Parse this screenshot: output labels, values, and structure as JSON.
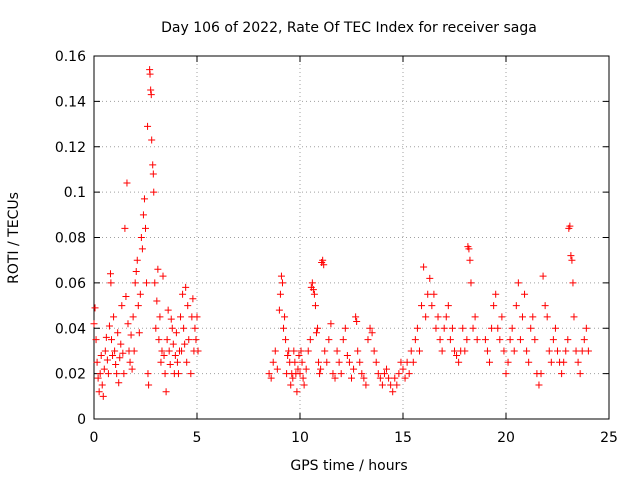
{
  "chart_data": {
    "type": "scatter",
    "title": "Day 106 of 2022, Rate Of TEC Index for receiver saga",
    "xlabel": "GPS time / hours",
    "ylabel": "ROTI / TECUs",
    "xlim": [
      0,
      25
    ],
    "ylim": [
      0,
      0.16
    ],
    "x_ticks": [
      0,
      5,
      10,
      15,
      20,
      25
    ],
    "y_ticks": [
      0,
      0.02,
      0.04,
      0.06,
      0.08,
      0.1,
      0.12,
      0.14,
      0.16
    ],
    "x_tick_labels": [
      "0",
      "5",
      "10",
      "15",
      "20",
      "25"
    ],
    "y_tick_labels": [
      "0",
      "0.02",
      "0.04",
      "0.06",
      "0.08",
      "0.1",
      "0.12",
      "0.14",
      "0.16"
    ],
    "grid": true,
    "marker": "+",
    "color": "#ff0000",
    "series": [
      {
        "name": "ROTI",
        "points": [
          [
            0.0,
            0.042
          ],
          [
            0.05,
            0.049
          ],
          [
            0.1,
            0.035
          ],
          [
            0.15,
            0.025
          ],
          [
            0.2,
            0.018
          ],
          [
            0.25,
            0.012
          ],
          [
            0.3,
            0.02
          ],
          [
            0.35,
            0.028
          ],
          [
            0.4,
            0.015
          ],
          [
            0.45,
            0.01
          ],
          [
            0.5,
            0.022
          ],
          [
            0.55,
            0.03
          ],
          [
            0.6,
            0.036
          ],
          [
            0.65,
            0.026
          ],
          [
            0.7,
            0.02
          ],
          [
            0.75,
            0.041
          ],
          [
            0.8,
            0.064
          ],
          [
            0.82,
            0.06
          ],
          [
            0.85,
            0.035
          ],
          [
            0.9,
            0.028
          ],
          [
            0.95,
            0.045
          ],
          [
            1.0,
            0.03
          ],
          [
            1.05,
            0.024
          ],
          [
            1.1,
            0.02
          ],
          [
            1.15,
            0.038
          ],
          [
            1.2,
            0.016
          ],
          [
            1.25,
            0.027
          ],
          [
            1.3,
            0.033
          ],
          [
            1.35,
            0.05
          ],
          [
            1.4,
            0.029
          ],
          [
            1.45,
            0.02
          ],
          [
            1.5,
            0.084
          ],
          [
            1.55,
            0.054
          ],
          [
            1.6,
            0.104
          ],
          [
            1.65,
            0.042
          ],
          [
            1.7,
            0.03
          ],
          [
            1.75,
            0.025
          ],
          [
            1.8,
            0.037
          ],
          [
            1.85,
            0.022
          ],
          [
            1.9,
            0.045
          ],
          [
            1.95,
            0.03
          ],
          [
            2.0,
            0.06
          ],
          [
            2.05,
            0.065
          ],
          [
            2.1,
            0.07
          ],
          [
            2.15,
            0.05
          ],
          [
            2.2,
            0.038
          ],
          [
            2.25,
            0.055
          ],
          [
            2.3,
            0.08
          ],
          [
            2.35,
            0.075
          ],
          [
            2.4,
            0.09
          ],
          [
            2.45,
            0.097
          ],
          [
            2.5,
            0.084
          ],
          [
            2.55,
            0.06
          ],
          [
            2.6,
            0.129
          ],
          [
            2.62,
            0.02
          ],
          [
            2.65,
            0.015
          ],
          [
            2.7,
            0.154
          ],
          [
            2.72,
            0.152
          ],
          [
            2.75,
            0.145
          ],
          [
            2.78,
            0.143
          ],
          [
            2.8,
            0.123
          ],
          [
            2.85,
            0.112
          ],
          [
            2.88,
            0.108
          ],
          [
            2.9,
            0.1
          ],
          [
            2.95,
            0.06
          ],
          [
            3.0,
            0.04
          ],
          [
            3.05,
            0.052
          ],
          [
            3.1,
            0.066
          ],
          [
            3.15,
            0.035
          ],
          [
            3.2,
            0.045
          ],
          [
            3.25,
            0.025
          ],
          [
            3.3,
            0.03
          ],
          [
            3.35,
            0.063
          ],
          [
            3.4,
            0.028
          ],
          [
            3.45,
            0.02
          ],
          [
            3.5,
            0.012
          ],
          [
            3.55,
            0.035
          ],
          [
            3.6,
            0.048
          ],
          [
            3.65,
            0.03
          ],
          [
            3.7,
            0.024
          ],
          [
            3.75,
            0.044
          ],
          [
            3.8,
            0.04
          ],
          [
            3.85,
            0.033
          ],
          [
            3.9,
            0.02
          ],
          [
            3.95,
            0.028
          ],
          [
            4.0,
            0.038
          ],
          [
            4.05,
            0.025
          ],
          [
            4.1,
            0.02
          ],
          [
            4.15,
            0.03
          ],
          [
            4.2,
            0.045
          ],
          [
            4.25,
            0.03
          ],
          [
            4.3,
            0.055
          ],
          [
            4.35,
            0.04
          ],
          [
            4.4,
            0.033
          ],
          [
            4.45,
            0.058
          ],
          [
            4.5,
            0.025
          ],
          [
            4.55,
            0.05
          ],
          [
            4.6,
            0.035
          ],
          [
            4.7,
            0.02
          ],
          [
            4.75,
            0.045
          ],
          [
            4.8,
            0.053
          ],
          [
            4.85,
            0.03
          ],
          [
            4.9,
            0.04
          ],
          [
            4.95,
            0.035
          ],
          [
            5.0,
            0.045
          ],
          [
            5.05,
            0.03
          ],
          [
            8.5,
            0.02
          ],
          [
            8.6,
            0.018
          ],
          [
            8.7,
            0.025
          ],
          [
            8.8,
            0.03
          ],
          [
            8.9,
            0.022
          ],
          [
            9.0,
            0.048
          ],
          [
            9.05,
            0.055
          ],
          [
            9.1,
            0.063
          ],
          [
            9.15,
            0.06
          ],
          [
            9.2,
            0.04
          ],
          [
            9.25,
            0.045
          ],
          [
            9.3,
            0.035
          ],
          [
            9.35,
            0.02
          ],
          [
            9.4,
            0.028
          ],
          [
            9.45,
            0.03
          ],
          [
            9.5,
            0.025
          ],
          [
            9.55,
            0.015
          ],
          [
            9.6,
            0.02
          ],
          [
            9.65,
            0.018
          ],
          [
            9.7,
            0.03
          ],
          [
            9.75,
            0.025
          ],
          [
            9.8,
            0.02
          ],
          [
            9.85,
            0.012
          ],
          [
            9.9,
            0.022
          ],
          [
            9.95,
            0.028
          ],
          [
            10.0,
            0.02
          ],
          [
            10.05,
            0.03
          ],
          [
            10.1,
            0.025
          ],
          [
            10.15,
            0.018
          ],
          [
            10.2,
            0.015
          ],
          [
            10.3,
            0.022
          ],
          [
            10.4,
            0.03
          ],
          [
            10.5,
            0.035
          ],
          [
            10.55,
            0.058
          ],
          [
            10.6,
            0.06
          ],
          [
            10.65,
            0.057
          ],
          [
            10.7,
            0.055
          ],
          [
            10.75,
            0.05
          ],
          [
            10.8,
            0.038
          ],
          [
            10.85,
            0.04
          ],
          [
            10.9,
            0.025
          ],
          [
            10.95,
            0.02
          ],
          [
            11.0,
            0.022
          ],
          [
            11.05,
            0.069
          ],
          [
            11.1,
            0.07
          ],
          [
            11.15,
            0.068
          ],
          [
            11.2,
            0.03
          ],
          [
            11.3,
            0.025
          ],
          [
            11.4,
            0.035
          ],
          [
            11.5,
            0.042
          ],
          [
            11.6,
            0.02
          ],
          [
            11.7,
            0.018
          ],
          [
            11.8,
            0.03
          ],
          [
            11.9,
            0.025
          ],
          [
            12.0,
            0.02
          ],
          [
            12.1,
            0.035
          ],
          [
            12.2,
            0.04
          ],
          [
            12.3,
            0.028
          ],
          [
            12.4,
            0.025
          ],
          [
            12.5,
            0.018
          ],
          [
            12.6,
            0.022
          ],
          [
            12.7,
            0.045
          ],
          [
            12.75,
            0.043
          ],
          [
            12.8,
            0.03
          ],
          [
            12.9,
            0.025
          ],
          [
            13.0,
            0.02
          ],
          [
            13.1,
            0.018
          ],
          [
            13.2,
            0.015
          ],
          [
            13.3,
            0.035
          ],
          [
            13.4,
            0.04
          ],
          [
            13.5,
            0.038
          ],
          [
            13.6,
            0.03
          ],
          [
            13.7,
            0.025
          ],
          [
            13.8,
            0.02
          ],
          [
            13.9,
            0.018
          ],
          [
            14.0,
            0.015
          ],
          [
            14.1,
            0.02
          ],
          [
            14.2,
            0.022
          ],
          [
            14.3,
            0.018
          ],
          [
            14.4,
            0.015
          ],
          [
            14.5,
            0.012
          ],
          [
            14.6,
            0.018
          ],
          [
            14.7,
            0.015
          ],
          [
            14.8,
            0.02
          ],
          [
            14.9,
            0.025
          ],
          [
            15.0,
            0.022
          ],
          [
            15.1,
            0.018
          ],
          [
            15.2,
            0.025
          ],
          [
            15.3,
            0.02
          ],
          [
            15.4,
            0.03
          ],
          [
            15.5,
            0.025
          ],
          [
            15.6,
            0.035
          ],
          [
            15.7,
            0.04
          ],
          [
            15.8,
            0.03
          ],
          [
            15.9,
            0.05
          ],
          [
            16.0,
            0.067
          ],
          [
            16.1,
            0.045
          ],
          [
            16.2,
            0.055
          ],
          [
            16.3,
            0.062
          ],
          [
            16.4,
            0.05
          ],
          [
            16.5,
            0.055
          ],
          [
            16.6,
            0.04
          ],
          [
            16.7,
            0.045
          ],
          [
            16.8,
            0.035
          ],
          [
            16.9,
            0.03
          ],
          [
            17.0,
            0.04
          ],
          [
            17.1,
            0.045
          ],
          [
            17.2,
            0.05
          ],
          [
            17.3,
            0.035
          ],
          [
            17.4,
            0.04
          ],
          [
            17.5,
            0.03
          ],
          [
            17.6,
            0.028
          ],
          [
            17.7,
            0.025
          ],
          [
            17.8,
            0.03
          ],
          [
            17.9,
            0.04
          ],
          [
            18.0,
            0.03
          ],
          [
            18.1,
            0.035
          ],
          [
            18.15,
            0.076
          ],
          [
            18.2,
            0.075
          ],
          [
            18.25,
            0.07
          ],
          [
            18.3,
            0.06
          ],
          [
            18.4,
            0.04
          ],
          [
            18.5,
            0.045
          ],
          [
            18.6,
            0.035
          ],
          [
            19.0,
            0.035
          ],
          [
            19.1,
            0.03
          ],
          [
            19.2,
            0.025
          ],
          [
            19.3,
            0.04
          ],
          [
            19.4,
            0.05
          ],
          [
            19.5,
            0.055
          ],
          [
            19.6,
            0.04
          ],
          [
            19.7,
            0.035
          ],
          [
            19.8,
            0.045
          ],
          [
            19.9,
            0.03
          ],
          [
            20.0,
            0.02
          ],
          [
            20.1,
            0.025
          ],
          [
            20.2,
            0.035
          ],
          [
            20.3,
            0.04
          ],
          [
            20.4,
            0.03
          ],
          [
            20.5,
            0.05
          ],
          [
            20.6,
            0.06
          ],
          [
            20.7,
            0.035
          ],
          [
            20.8,
            0.045
          ],
          [
            20.9,
            0.055
          ],
          [
            21.0,
            0.03
          ],
          [
            21.1,
            0.025
          ],
          [
            21.2,
            0.04
          ],
          [
            21.3,
            0.045
          ],
          [
            21.4,
            0.035
          ],
          [
            21.5,
            0.02
          ],
          [
            21.6,
            0.015
          ],
          [
            21.7,
            0.02
          ],
          [
            21.8,
            0.063
          ],
          [
            21.9,
            0.05
          ],
          [
            22.0,
            0.045
          ],
          [
            22.1,
            0.03
          ],
          [
            22.2,
            0.025
          ],
          [
            22.3,
            0.035
          ],
          [
            22.4,
            0.04
          ],
          [
            22.5,
            0.03
          ],
          [
            22.6,
            0.025
          ],
          [
            22.7,
            0.02
          ],
          [
            22.8,
            0.025
          ],
          [
            22.9,
            0.03
          ],
          [
            23.0,
            0.035
          ],
          [
            23.05,
            0.084
          ],
          [
            23.1,
            0.085
          ],
          [
            23.15,
            0.072
          ],
          [
            23.2,
            0.07
          ],
          [
            23.25,
            0.06
          ],
          [
            23.3,
            0.045
          ],
          [
            23.4,
            0.03
          ],
          [
            23.5,
            0.025
          ],
          [
            23.6,
            0.02
          ],
          [
            23.7,
            0.03
          ],
          [
            23.8,
            0.035
          ],
          [
            23.9,
            0.04
          ],
          [
            24.0,
            0.03
          ]
        ]
      }
    ]
  }
}
